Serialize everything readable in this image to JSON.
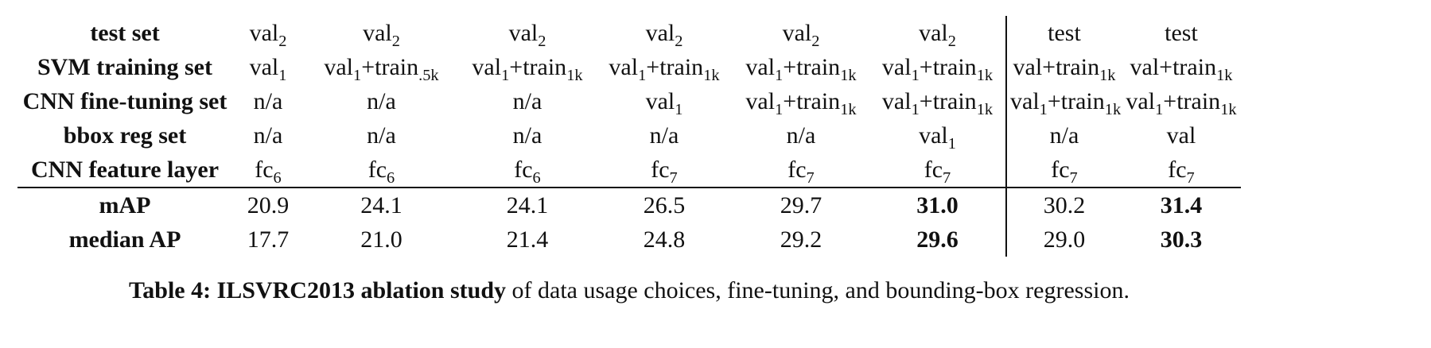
{
  "table": {
    "divider_after_col": 6,
    "rows": [
      {
        "label": "test set",
        "cells": [
          "val_{2}",
          "val_{2}",
          "val_{2}",
          "val_{2}",
          "val_{2}",
          "val_{2}",
          "test",
          "test"
        ]
      },
      {
        "label": "SVM training set",
        "cells": [
          "val_{1}",
          "val_{1}+train_{.5k}",
          "val_{1}+train_{1k}",
          "val_{1}+train_{1k}",
          "val_{1}+train_{1k}",
          "val_{1}+train_{1k}",
          "val+train_{1k}",
          "val+train_{1k}"
        ]
      },
      {
        "label": "CNN fine-tuning set",
        "cells": [
          "n/a",
          "n/a",
          "n/a",
          "val_{1}",
          "val_{1}+train_{1k}",
          "val_{1}+train_{1k}",
          "val_{1}+train_{1k}",
          "val_{1}+train_{1k}"
        ]
      },
      {
        "label": "bbox reg set",
        "cells": [
          "n/a",
          "n/a",
          "n/a",
          "n/a",
          "n/a",
          "val_{1}",
          "n/a",
          "val"
        ]
      },
      {
        "label": "CNN feature layer",
        "rule_below": true,
        "cells": [
          "fc_{6}",
          "fc_{6}",
          "fc_{6}",
          "fc_{7}",
          "fc_{7}",
          "fc_{7}",
          "fc_{7}",
          "fc_{7}"
        ]
      },
      {
        "label": "mAP",
        "cells": [
          "20.9",
          "24.1",
          "24.1",
          "26.5",
          "29.7",
          {
            "t": "31.0",
            "bold": true
          },
          "30.2",
          {
            "t": "31.4",
            "bold": true
          }
        ]
      },
      {
        "label": "median AP",
        "cells": [
          "17.7",
          "21.0",
          "21.4",
          "24.8",
          "29.2",
          {
            "t": "29.6",
            "bold": true
          },
          "29.0",
          {
            "t": "30.3",
            "bold": true
          }
        ]
      }
    ]
  },
  "chart_data": {
    "type": "table",
    "title": "Table 4: ILSVRC2013 ablation study",
    "row_labels": [
      "test set",
      "SVM training set",
      "CNN fine-tuning set",
      "bbox reg set",
      "CNN feature layer",
      "mAP",
      "median AP"
    ],
    "mAP_values": [
      20.9,
      24.1,
      24.1,
      26.5,
      29.7,
      31.0,
      30.2,
      31.4
    ],
    "median_AP_values": [
      17.7,
      21.0,
      21.4,
      24.8,
      29.2,
      29.6,
      29.0,
      30.3
    ]
  },
  "caption": {
    "bold": "Table 4: ILSVRC2013 ablation study",
    "rest": " of data usage choices, fine-tuning, and bounding-box regression."
  }
}
